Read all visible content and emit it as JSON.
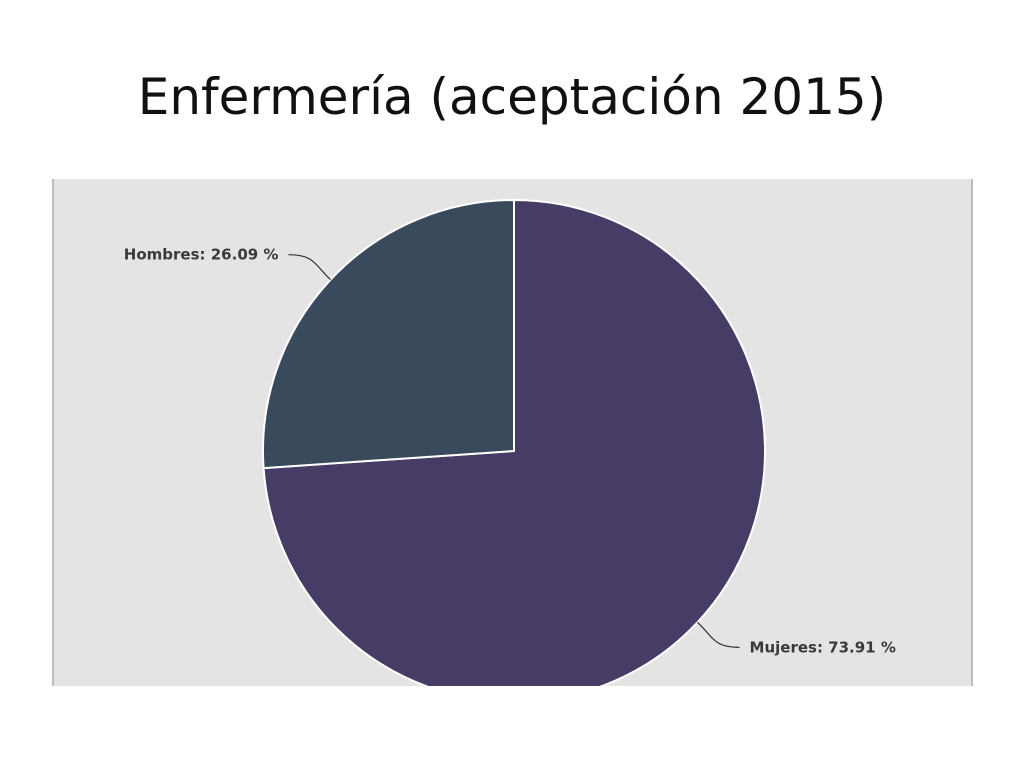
{
  "slide": {
    "title": "Enfermería (aceptación 2015)"
  },
  "chart_data": {
    "type": "pie",
    "slices": [
      {
        "label": "Mujeres: 73.91 %",
        "category": "Mujeres",
        "value": 73.91,
        "color": "#463c65"
      },
      {
        "label": "Hombres: 26.09 %",
        "category": "Hombres",
        "value": 26.09,
        "color": "#384a5c"
      }
    ],
    "background": "#e4e4e4"
  }
}
